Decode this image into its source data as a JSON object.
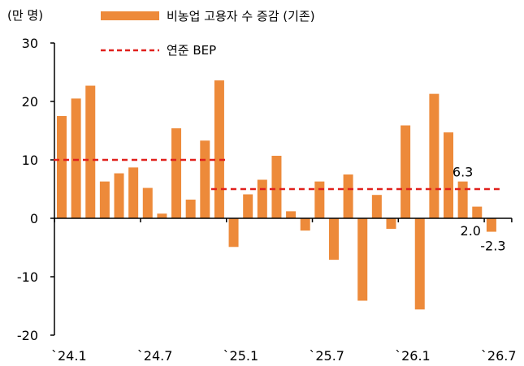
{
  "chart_data": {
    "type": "bar",
    "unit_label": "(만 명)",
    "ylim": [
      -20,
      30
    ],
    "yticks": [
      30,
      20,
      10,
      0,
      -10,
      -20
    ],
    "grid": false,
    "legend_position": "top",
    "colors": {
      "bar": "#ED8A3A",
      "bep": "#E0201C"
    },
    "x_tick_labels": [
      {
        "label": "`24.1",
        "index": 0
      },
      {
        "label": "`24.7",
        "index": 6
      },
      {
        "label": "`25.1",
        "index": 12
      },
      {
        "label": "`25.7",
        "index": 18
      },
      {
        "label": "`26.1",
        "index": 24
      },
      {
        "label": "`26.7",
        "index": 30
      }
    ],
    "series": [
      {
        "name": "비농업 고용자 수 증감 (기존)",
        "type": "bar",
        "values": [
          17.5,
          20.5,
          22.7,
          6.3,
          7.7,
          8.7,
          5.2,
          0.8,
          15.4,
          3.2,
          13.3,
          23.6,
          -4.9,
          4.1,
          6.6,
          10.7,
          1.2,
          -2.1,
          6.3,
          -7.1,
          7.5,
          -14.1,
          4.0,
          -1.8,
          15.9,
          -15.6,
          21.3,
          14.7,
          6.3,
          2.0,
          -2.3
        ]
      },
      {
        "name": "연준 BEP",
        "type": "line",
        "style": "dashed",
        "segments": [
          {
            "start_index": 0,
            "end_index": 11,
            "value": 10
          },
          {
            "start_index": 11,
            "end_index": 30,
            "value": 5
          }
        ]
      }
    ],
    "data_labels": [
      {
        "index": 28,
        "text": "6.3"
      },
      {
        "index": 29,
        "text": "2.0"
      },
      {
        "index": 30,
        "text": "-2.3"
      }
    ]
  }
}
